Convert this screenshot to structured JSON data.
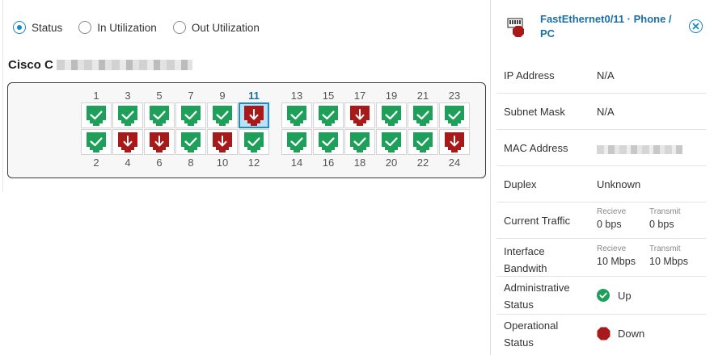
{
  "view_options": {
    "selected": "status",
    "options": [
      {
        "id": "status",
        "label": "Status"
      },
      {
        "id": "in_util",
        "label": "In Utilization"
      },
      {
        "id": "out_util",
        "label": "Out Utilization"
      }
    ]
  },
  "device": {
    "name_visible": "Cisco C"
  },
  "switch": {
    "selected_port": "11",
    "top_ports": [
      {
        "num": "1",
        "status": "up"
      },
      {
        "num": "3",
        "status": "up"
      },
      {
        "num": "5",
        "status": "up"
      },
      {
        "num": "7",
        "status": "up"
      },
      {
        "num": "9",
        "status": "up"
      },
      {
        "num": "11",
        "status": "down"
      },
      {
        "num": "13",
        "status": "up"
      },
      {
        "num": "15",
        "status": "up"
      },
      {
        "num": "17",
        "status": "down"
      },
      {
        "num": "19",
        "status": "up"
      },
      {
        "num": "21",
        "status": "up"
      },
      {
        "num": "23",
        "status": "up"
      }
    ],
    "bottom_ports": [
      {
        "num": "2",
        "status": "up"
      },
      {
        "num": "4",
        "status": "down"
      },
      {
        "num": "6",
        "status": "down"
      },
      {
        "num": "8",
        "status": "up"
      },
      {
        "num": "10",
        "status": "down"
      },
      {
        "num": "12",
        "status": "up"
      },
      {
        "num": "14",
        "status": "up"
      },
      {
        "num": "16",
        "status": "up"
      },
      {
        "num": "18",
        "status": "up"
      },
      {
        "num": "20",
        "status": "up"
      },
      {
        "num": "22",
        "status": "up"
      },
      {
        "num": "24",
        "status": "down"
      }
    ]
  },
  "colors": {
    "up": "#1ea05a",
    "down": "#a81a1a",
    "accent": "#1a87c8"
  },
  "detail": {
    "title": "FastEthernet0/11 · Phone / PC",
    "icon": "ethernet-port-down-icon",
    "ip_label": "IP Address",
    "ip_value": "N/A",
    "subnet_label": "Subnet Mask",
    "subnet_value": "N/A",
    "mac_label": "MAC Address",
    "duplex_label": "Duplex",
    "duplex_value": "Unknown",
    "traffic_label": "Current Traffic",
    "traffic_rx_caption": "Recieve",
    "traffic_rx_value": "0 bps",
    "traffic_tx_caption": "Transmit",
    "traffic_tx_value": "0 bps",
    "bandwidth_label_1": "Interface",
    "bandwidth_label_2": "Bandwith",
    "bandwidth_rx_caption": "Recieve",
    "bandwidth_rx_value": "10 Mbps",
    "bandwidth_tx_caption": "Transmit",
    "bandwidth_tx_value": "10 Mbps",
    "admin_label_1": "Administrative",
    "admin_label_2": "Status",
    "admin_value": "Up",
    "oper_label_1": "Operational",
    "oper_label_2": "Status",
    "oper_value": "Down"
  }
}
